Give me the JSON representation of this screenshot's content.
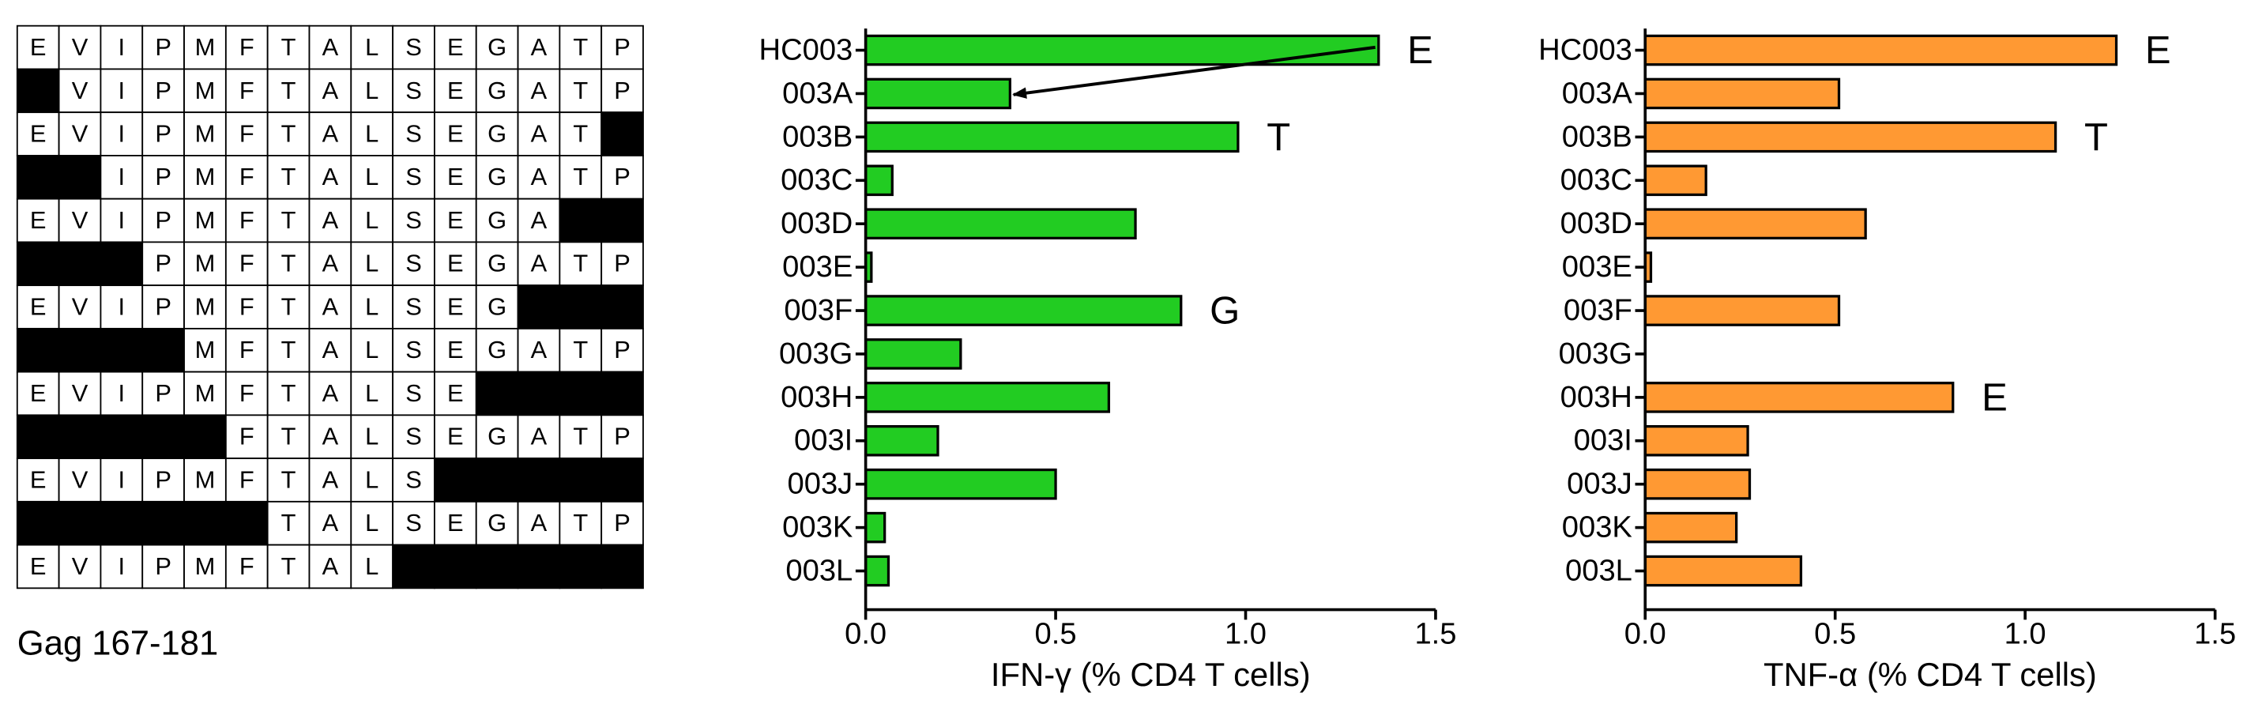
{
  "peptide_grid": [
    [
      "E",
      "V",
      "I",
      "P",
      "M",
      "F",
      "T",
      "A",
      "L",
      "S",
      "E",
      "G",
      "A",
      "T",
      "P"
    ],
    [
      null,
      "V",
      "I",
      "P",
      "M",
      "F",
      "T",
      "A",
      "L",
      "S",
      "E",
      "G",
      "A",
      "T",
      "P"
    ],
    [
      "E",
      "V",
      "I",
      "P",
      "M",
      "F",
      "T",
      "A",
      "L",
      "S",
      "E",
      "G",
      "A",
      "T",
      null
    ],
    [
      null,
      null,
      "I",
      "P",
      "M",
      "F",
      "T",
      "A",
      "L",
      "S",
      "E",
      "G",
      "A",
      "T",
      "P"
    ],
    [
      "E",
      "V",
      "I",
      "P",
      "M",
      "F",
      "T",
      "A",
      "L",
      "S",
      "E",
      "G",
      "A",
      null,
      null
    ],
    [
      null,
      null,
      null,
      "P",
      "M",
      "F",
      "T",
      "A",
      "L",
      "S",
      "E",
      "G",
      "A",
      "T",
      "P"
    ],
    [
      "E",
      "V",
      "I",
      "P",
      "M",
      "F",
      "T",
      "A",
      "L",
      "S",
      "E",
      "G",
      null,
      null,
      null
    ],
    [
      null,
      null,
      null,
      null,
      "M",
      "F",
      "T",
      "A",
      "L",
      "S",
      "E",
      "G",
      "A",
      "T",
      "P"
    ],
    [
      "E",
      "V",
      "I",
      "P",
      "M",
      "F",
      "T",
      "A",
      "L",
      "S",
      "E",
      null,
      null,
      null,
      null
    ],
    [
      null,
      null,
      null,
      null,
      null,
      "F",
      "T",
      "A",
      "L",
      "S",
      "E",
      "G",
      "A",
      "T",
      "P"
    ],
    [
      "E",
      "V",
      "I",
      "P",
      "M",
      "F",
      "T",
      "A",
      "L",
      "S",
      null,
      null,
      null,
      null,
      null
    ],
    [
      null,
      null,
      null,
      null,
      null,
      null,
      "T",
      "A",
      "L",
      "S",
      "E",
      "G",
      "A",
      "T",
      "P"
    ],
    [
      "E",
      "V",
      "I",
      "P",
      "M",
      "F",
      "T",
      "A",
      "L",
      null,
      null,
      null,
      null,
      null,
      null
    ]
  ],
  "caption": "Gag 167-181",
  "chart_data": [
    {
      "type": "bar",
      "orientation": "horizontal",
      "x_label": "IFN-γ (% CD4 T cells)",
      "categories": [
        "HC003",
        "003A",
        "003B",
        "003C",
        "003D",
        "003E",
        "003F",
        "003G",
        "003H",
        "003I",
        "003J",
        "003K",
        "003L"
      ],
      "values": [
        1.35,
        0.38,
        0.98,
        0.07,
        0.71,
        0.015,
        0.83,
        0.25,
        0.64,
        0.19,
        0.5,
        0.05,
        0.06
      ],
      "bar_labels": [
        "E",
        null,
        "T",
        null,
        null,
        null,
        "G",
        null,
        null,
        null,
        null,
        null,
        null
      ],
      "color": "#22cc22",
      "xlim": [
        0,
        1.5
      ],
      "xticks": [
        {
          "value": 0,
          "label": "0.0"
        },
        0.5,
        {
          "value": 1,
          "label": "1.0"
        },
        1.5
      ],
      "grid": false
    },
    {
      "type": "bar",
      "orientation": "horizontal",
      "x_label": "TNF-α (% CD4 T cells)",
      "categories": [
        "HC003",
        "003A",
        "003B",
        "003C",
        "003D",
        "003E",
        "003F",
        "003G",
        "003H",
        "003I",
        "003J",
        "003K",
        "003L"
      ],
      "values": [
        1.24,
        0.51,
        1.08,
        0.16,
        0.58,
        0.015,
        0.51,
        0,
        0.81,
        0.27,
        0.275,
        0.24,
        0.41
      ],
      "bar_labels": [
        "E",
        null,
        "T",
        null,
        null,
        null,
        null,
        null,
        "E",
        null,
        null,
        null,
        null
      ],
      "color": "#ff9933",
      "xlim": [
        0,
        1.5
      ],
      "xticks": [
        {
          "value": 0,
          "label": "0.0"
        },
        0.5,
        {
          "value": 1,
          "label": "1.0"
        },
        1.5
      ],
      "grid": false
    }
  ]
}
